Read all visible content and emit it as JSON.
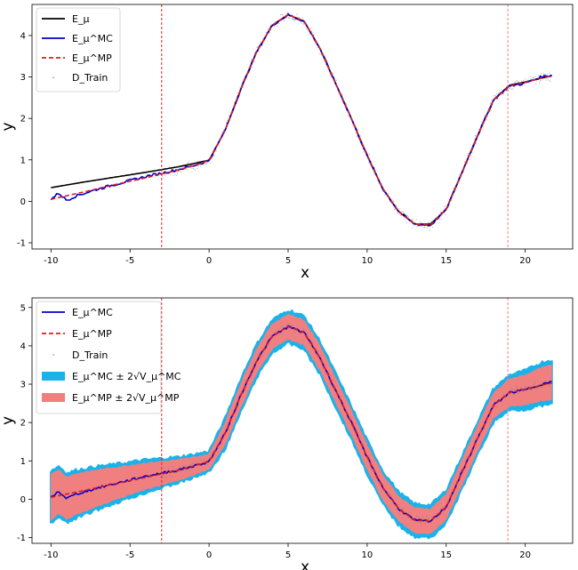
{
  "chart_data": [
    {
      "type": "line",
      "xlabel": "x",
      "ylabel": "y",
      "xlim": [
        -11.2,
        23.0
      ],
      "ylim": [
        -1.15,
        4.75
      ],
      "xticks": [
        -10,
        -5,
        0,
        5,
        10,
        15,
        20
      ],
      "yticks": [
        -1,
        0,
        1,
        2,
        3,
        4
      ],
      "legend_position": "top-left",
      "vlines": [
        {
          "x": -3.0,
          "style": "dashed",
          "color": "#d62728"
        },
        {
          "x": 18.9,
          "style": "dashed",
          "color": "#f08080"
        }
      ],
      "series": [
        {
          "name": "E_μ",
          "color": "#000000",
          "style": "solid",
          "x": [
            -10,
            -8,
            -6,
            -4,
            -2,
            0,
            1,
            2,
            3,
            4,
            5,
            6,
            7,
            8,
            9,
            10,
            11,
            12,
            13,
            14,
            15,
            16,
            17,
            18,
            19,
            20,
            21,
            21.7
          ],
          "y": [
            0.33,
            0.46,
            0.58,
            0.7,
            0.83,
            0.99,
            1.7,
            2.7,
            3.6,
            4.25,
            4.5,
            4.35,
            3.7,
            2.85,
            2.0,
            1.1,
            0.3,
            -0.25,
            -0.55,
            -0.55,
            -0.2,
            0.7,
            1.6,
            2.45,
            2.8,
            2.88,
            2.97,
            3.03
          ]
        },
        {
          "name": "E_μ^MC",
          "color": "#0000cc",
          "style": "solid",
          "x": [
            -10,
            -9.5,
            -9,
            -8.5,
            -8,
            -7,
            -6,
            -5,
            -4,
            -3,
            -2,
            -1,
            0,
            1,
            2,
            3,
            4,
            5,
            6,
            7,
            8,
            9,
            10,
            11,
            12,
            13,
            14,
            15,
            16,
            17,
            18,
            19,
            20,
            21,
            21.7
          ],
          "y": [
            0.05,
            0.2,
            0.02,
            0.12,
            0.18,
            0.3,
            0.4,
            0.5,
            0.6,
            0.68,
            0.76,
            0.86,
            0.98,
            1.7,
            2.7,
            3.6,
            4.25,
            4.5,
            4.35,
            3.7,
            2.85,
            2.0,
            1.1,
            0.3,
            -0.25,
            -0.55,
            -0.58,
            -0.2,
            0.7,
            1.6,
            2.45,
            2.78,
            2.85,
            3.0,
            3.05
          ]
        },
        {
          "name": "E_μ^MP",
          "color": "#e31a1c",
          "style": "dashed",
          "x": [
            -10,
            -8,
            -6,
            -4,
            -2,
            0,
            1,
            2,
            3,
            4,
            5,
            6,
            7,
            8,
            9,
            10,
            11,
            12,
            13,
            14,
            15,
            16,
            17,
            18,
            19,
            20,
            21,
            21.7
          ],
          "y": [
            0.05,
            0.22,
            0.4,
            0.57,
            0.75,
            0.98,
            1.7,
            2.7,
            3.6,
            4.25,
            4.5,
            4.35,
            3.7,
            2.85,
            2.0,
            1.1,
            0.3,
            -0.25,
            -0.55,
            -0.57,
            -0.2,
            0.7,
            1.6,
            2.45,
            2.78,
            2.87,
            2.97,
            3.03
          ]
        },
        {
          "name": "D_Train",
          "color": "#7f7f7f",
          "style": "points",
          "x_range": [
            -3.0,
            21.7
          ],
          "noise": 0.1
        }
      ]
    },
    {
      "type": "line",
      "xlabel": "x",
      "ylabel": "y",
      "xlim": [
        -11.2,
        23.0
      ],
      "ylim": [
        -1.15,
        5.25
      ],
      "xticks": [
        -10,
        -5,
        0,
        5,
        10,
        15,
        20
      ],
      "yticks": [
        -1,
        0,
        1,
        2,
        3,
        4,
        5
      ],
      "legend_position": "top-left",
      "vlines": [
        {
          "x": -3.0,
          "style": "dashed",
          "color": "#d62728"
        },
        {
          "x": 18.9,
          "style": "dashed",
          "color": "#f08080"
        }
      ],
      "series": [
        {
          "name": "E_μ^MC",
          "color": "#0000cc",
          "style": "solid",
          "x": [
            -10,
            -9.5,
            -9,
            -8.5,
            -8,
            -7,
            -6,
            -5,
            -4,
            -3,
            -2,
            -1,
            0,
            1,
            2,
            3,
            4,
            5,
            6,
            7,
            8,
            9,
            10,
            11,
            12,
            13,
            14,
            15,
            16,
            17,
            18,
            19,
            20,
            21,
            21.7
          ],
          "y": [
            0.05,
            0.2,
            0.02,
            0.12,
            0.18,
            0.3,
            0.4,
            0.5,
            0.6,
            0.68,
            0.76,
            0.86,
            0.98,
            1.7,
            2.7,
            3.6,
            4.25,
            4.5,
            4.35,
            3.7,
            2.85,
            2.0,
            1.1,
            0.3,
            -0.25,
            -0.55,
            -0.58,
            -0.2,
            0.7,
            1.6,
            2.45,
            2.78,
            2.85,
            3.0,
            3.05
          ]
        },
        {
          "name": "E_μ^MP",
          "color": "#e31a1c",
          "style": "dashed",
          "x": [
            -10,
            -8,
            -6,
            -4,
            -2,
            0,
            1,
            2,
            3,
            4,
            5,
            6,
            7,
            8,
            9,
            10,
            11,
            12,
            13,
            14,
            15,
            16,
            17,
            18,
            19,
            20,
            21,
            21.7
          ],
          "y": [
            0.05,
            0.22,
            0.4,
            0.57,
            0.75,
            0.98,
            1.7,
            2.7,
            3.6,
            4.25,
            4.5,
            4.35,
            3.7,
            2.85,
            2.0,
            1.1,
            0.3,
            -0.25,
            -0.55,
            -0.57,
            -0.2,
            0.7,
            1.6,
            2.45,
            2.78,
            2.87,
            2.97,
            3.03
          ]
        },
        {
          "name": "D_Train",
          "color": "#7f7f7f",
          "style": "points",
          "x_range": [
            -3.0,
            21.7
          ],
          "noise": 0.1
        },
        {
          "name": "E_μ^MC ± 2√V_μ^MC",
          "color": "#1ab2ea",
          "style": "band",
          "x": [
            -10,
            -8,
            -6,
            -4,
            -2,
            0,
            1,
            2,
            3,
            4,
            5,
            6,
            7,
            8,
            9,
            10,
            11,
            12,
            13,
            14,
            15,
            16,
            17,
            18,
            19,
            20,
            21,
            21.7
          ],
          "halfwidth": [
            0.68,
            0.6,
            0.5,
            0.42,
            0.33,
            0.26,
            0.38,
            0.42,
            0.42,
            0.42,
            0.42,
            0.42,
            0.42,
            0.42,
            0.42,
            0.42,
            0.42,
            0.42,
            0.42,
            0.42,
            0.42,
            0.42,
            0.42,
            0.42,
            0.45,
            0.5,
            0.55,
            0.58
          ]
        },
        {
          "name": "E_μ^MP ± 2√V_μ^MP",
          "color": "#f08080",
          "style": "band",
          "x": [
            -10,
            -8,
            -6,
            -4,
            -2,
            0,
            1,
            2,
            3,
            4,
            5,
            6,
            7,
            8,
            9,
            10,
            11,
            12,
            13,
            14,
            15,
            16,
            17,
            18,
            19,
            20,
            21,
            21.7
          ],
          "halfwidth": [
            0.6,
            0.52,
            0.43,
            0.35,
            0.27,
            0.2,
            0.3,
            0.33,
            0.33,
            0.33,
            0.33,
            0.33,
            0.33,
            0.33,
            0.33,
            0.33,
            0.33,
            0.33,
            0.33,
            0.33,
            0.33,
            0.33,
            0.33,
            0.33,
            0.36,
            0.4,
            0.43,
            0.45
          ]
        }
      ]
    }
  ]
}
